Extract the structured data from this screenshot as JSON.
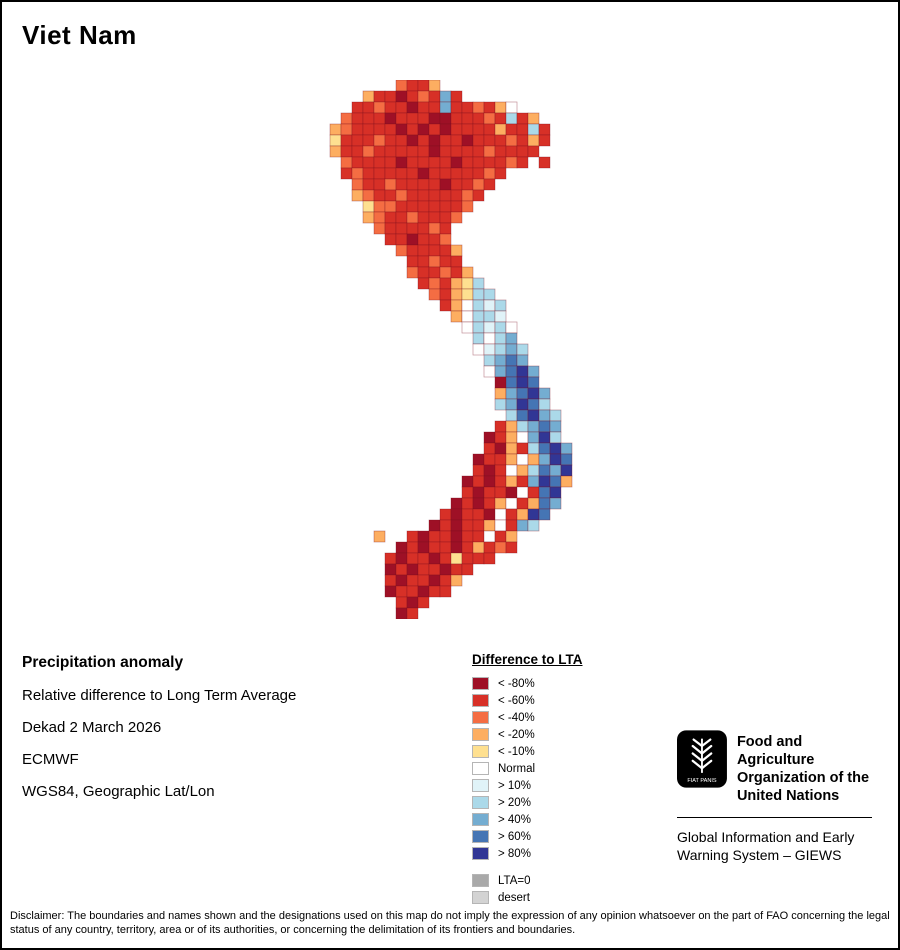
{
  "page": {
    "title": "Viet Nam",
    "background": "#ffffff",
    "border_color": "#000000"
  },
  "map": {
    "region": "Viet Nam",
    "cell_size": 11,
    "boundary_color": "#7a1020",
    "palette": {
      "A": "#9e1026",
      "B": "#d73027",
      "C": "#f46d43",
      "D": "#fdae61",
      "E": "#fee090",
      "N": "#ffffff",
      "F": "#e0f3f8",
      "G": "#abd9e9",
      "H": "#74add1",
      "I": "#4575b4",
      "J": "#313695"
    },
    "grid": [
      "........CBBD..............",
      ".....DBBABCBHB............",
      "....BBCBBABBHBBCBDN.......",
      "...CBBBABBBAABBBCBGBD.....",
      "..DCBBBBABABABBBBDBBGB....",
      "..EBBBCBBABABBABBBCBDB....",
      "..DBBCBBBBBABBBBCBBBB.....",
      "...CBBBBABBBBABBBBCB.B....",
      "...BCBBBBBABBBBBCB........",
      "....CBBCBBBBABBCB.........",
      "....DCBBCBBBBBCB..........",
      ".....ECCBBBBBBC...........",
      ".....DCBBCBBBC............",
      "......CBBBBCB.............",
      ".......BBABBC.............",
      "........CBBBBD............",
      ".........BBCBB............",
      ".........CBBCBD...........",
      "..........BCBDEG..........",
      "...........CBDEGG.........",
      "............BDNGFG........",
      ".............DNGGF........",
      "..............NGFGN.......",
      "...............GNGH.......",
      "...............NFGHG......",
      "................GHIH......",
      "................NHIJH.....",
      ".................AIJI.....",
      ".................DHIJH....",
      ".................GHJIG....",
      "..................GIJHG...",
      ".................BDGHIH...",
      "................ABDNHJG...",
      "................BADBGIJH..",
      "...............ABBDNDHJI..",
      "...............BABNDGIHJ..",
      "..............ABABDBHJID..",
      "..............BABBANBIJ...",
      ".............ABABDNBDIH...",
      "............BABBANBDJI....",
      "...........ABABBDNBHG.....",
      "......D..BABBABBNBD.......",
      "........ABABBABDBCB.......",
      ".......BABBABEBBB.........",
      ".......ABABBABB...........",
      ".......BABBABD............",
      ".......ABBABB.............",
      "........BAB...............",
      "........AB................"
    ]
  },
  "info": {
    "heading": "Precipitation anomaly",
    "subtitle": "Relative difference to Long Term Average",
    "period": "Dekad 2 March 2026",
    "source": "ECMWF",
    "projection": "WGS84, Geographic Lat/Lon"
  },
  "legend": {
    "title": "Difference to LTA",
    "items": [
      {
        "label": "< -80%",
        "color": "#9e1026"
      },
      {
        "label": "< -60%",
        "color": "#d73027"
      },
      {
        "label": "< -40%",
        "color": "#f46d43"
      },
      {
        "label": "< -20%",
        "color": "#fdae61"
      },
      {
        "label": "< -10%",
        "color": "#fee090"
      },
      {
        "label": "Normal",
        "color": "#ffffff"
      },
      {
        "label": "> 10%",
        "color": "#e0f3f8"
      },
      {
        "label": "> 20%",
        "color": "#abd9e9"
      },
      {
        "label": "> 40%",
        "color": "#74add1"
      },
      {
        "label": "> 60%",
        "color": "#4575b4"
      },
      {
        "label": "> 80%",
        "color": "#313695"
      }
    ],
    "extra_items": [
      {
        "label": "LTA=0",
        "color": "#a9a9a9"
      },
      {
        "label": "desert",
        "color": "#d3d3d3"
      }
    ]
  },
  "org": {
    "logo_label": "FIAT PANIS",
    "name_lines": [
      "Food and Agriculture",
      "Organization of the",
      "United Nations"
    ],
    "subtitle_lines": [
      "Global Information and Early",
      "Warning System – GIEWS"
    ]
  },
  "disclaimer": "Disclaimer: The boundaries and names shown and the designations used on this map do not imply the expression of any opinion whatsoever on the part of FAO concerning the legal status of any country, territory, area or of its authorities, or concerning the delimitation of its frontiers and boundaries."
}
